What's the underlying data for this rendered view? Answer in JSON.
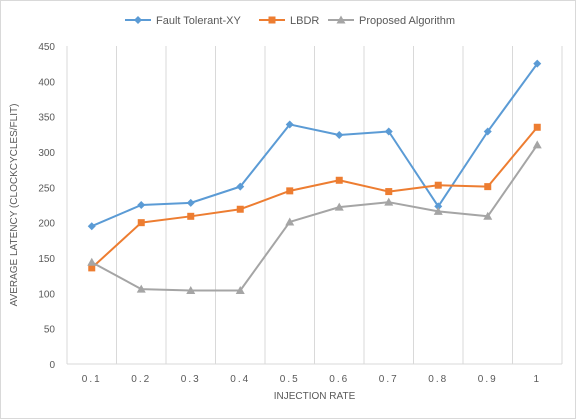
{
  "chart_data": {
    "type": "line",
    "title": "",
    "xlabel": "INJECTION RATE",
    "ylabel": "AVERAGE LATENCY (CLOCKCYCLES/FLIT)",
    "categories": [
      "0.1",
      "0.2",
      "0.3",
      "0.4",
      "0.5",
      "0.6",
      "0.7",
      "0.8",
      "0.9",
      "1"
    ],
    "ylim": [
      0,
      450
    ],
    "yticks": [
      0,
      50,
      100,
      150,
      200,
      250,
      300,
      350,
      400,
      450
    ],
    "grid": "vertical",
    "legend": "top",
    "series": [
      {
        "name": "Fault Tolerant-XY",
        "color": "#5b9bd5",
        "marker": "diamond",
        "values": [
          195,
          225,
          228,
          251,
          339,
          324,
          329,
          223,
          329,
          425
        ]
      },
      {
        "name": "LBDR",
        "color": "#ed7d31",
        "marker": "square",
        "values": [
          136,
          200,
          209,
          219,
          245,
          260,
          244,
          253,
          251,
          335
        ]
      },
      {
        "name": "Proposed Algorithm",
        "color": "#a5a5a5",
        "marker": "triangle",
        "values": [
          144,
          106,
          104,
          104,
          201,
          222,
          229,
          216,
          209,
          310
        ]
      }
    ]
  }
}
